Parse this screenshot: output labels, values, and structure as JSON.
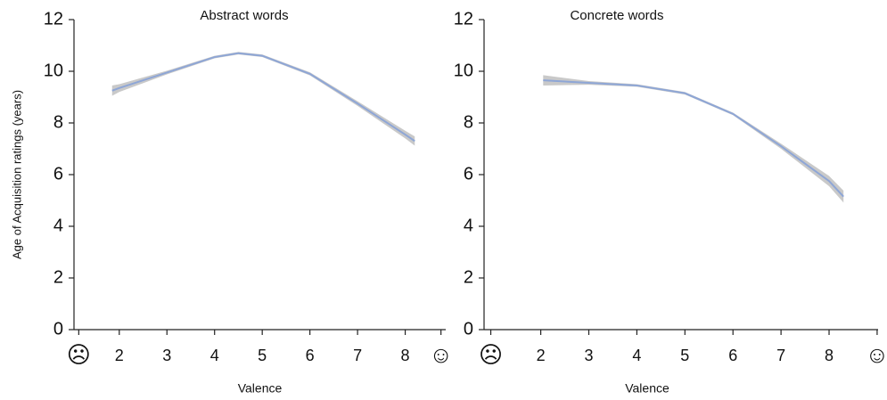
{
  "chart_data": [
    {
      "type": "line",
      "title": "Abstract words",
      "xlabel": "Valence",
      "ylabel": "Age of Acquisition ratings (years)",
      "x": [
        1.85,
        2,
        3,
        4,
        4.5,
        5,
        6,
        7,
        8,
        8.2
      ],
      "values": [
        9.25,
        9.35,
        9.95,
        10.55,
        10.7,
        10.6,
        9.9,
        8.75,
        7.55,
        7.3
      ],
      "lower": [
        9.05,
        9.2,
        9.88,
        10.5,
        10.65,
        10.55,
        9.84,
        8.66,
        7.4,
        7.12
      ],
      "upper": [
        9.45,
        9.5,
        10.02,
        10.6,
        10.75,
        10.65,
        9.96,
        8.84,
        7.7,
        7.48
      ],
      "color": "#8ea6d6",
      "band_color": "#c9c9c9",
      "xlim": [
        1.05,
        8.85
      ],
      "xticks": [
        {
          "value": 1.15,
          "label": "☹"
        },
        2,
        3,
        4,
        5,
        6,
        7,
        8,
        {
          "value": 8.75,
          "label": "☺"
        }
      ],
      "ylim": [
        0,
        12
      ],
      "yticks": [
        0,
        2,
        4,
        6,
        8,
        10,
        12
      ]
    },
    {
      "type": "line",
      "title": "Concrete words",
      "xlabel": "Valence",
      "x": [
        2.05,
        3,
        4,
        5,
        6,
        7,
        8,
        8.3
      ],
      "values": [
        9.65,
        9.55,
        9.45,
        9.15,
        8.35,
        7.1,
        5.75,
        5.15
      ],
      "lower": [
        9.45,
        9.48,
        9.4,
        9.1,
        8.3,
        7.0,
        5.55,
        4.92
      ],
      "upper": [
        9.85,
        9.62,
        9.5,
        9.2,
        8.4,
        7.2,
        5.95,
        5.38
      ],
      "color": "#8ea6d6",
      "band_color": "#c9c9c9",
      "xlim": [
        0.82,
        9.02
      ],
      "xticks": [
        {
          "value": 0.96,
          "label": "☹"
        },
        2,
        3,
        4,
        5,
        6,
        7,
        8,
        {
          "value": 9.0,
          "label": "☺"
        }
      ],
      "ylim": [
        0,
        12
      ],
      "yticks": [
        0,
        2,
        4,
        6,
        8,
        10,
        12
      ]
    }
  ]
}
